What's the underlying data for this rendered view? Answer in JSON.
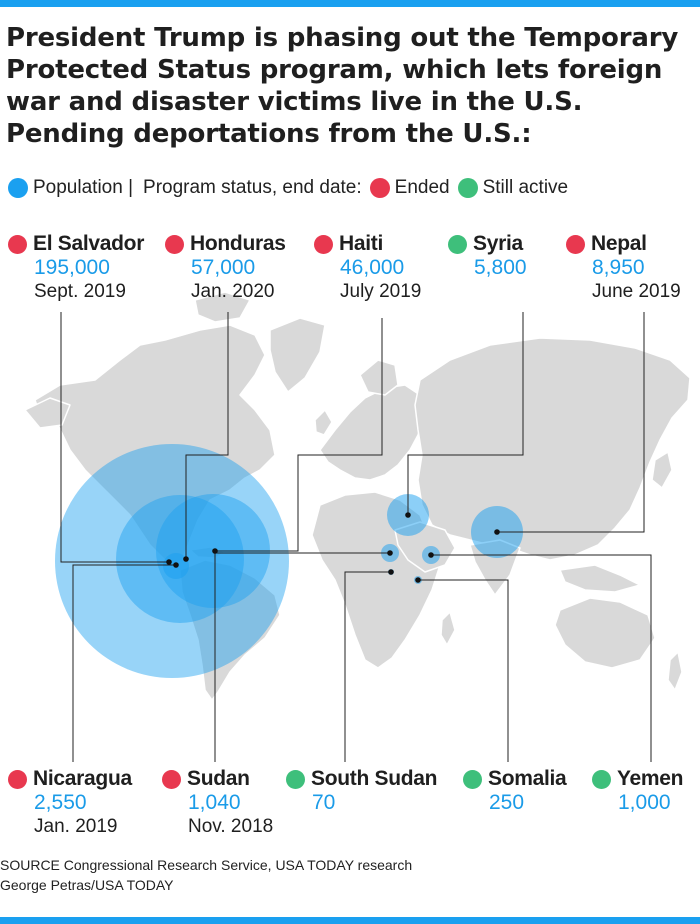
{
  "title": "President Trump is phasing out the Temporary Protected Status program, which lets foreign war and disaster victims live in the U.S. Pending deportations from the U.S.:",
  "legend": {
    "population": "Population |",
    "status_label": "Program status, end date:",
    "ended": "Ended",
    "active": "Still active"
  },
  "colors": {
    "accent": "#1aa0f0",
    "ended": "#e8384f",
    "active": "#3ebf7b",
    "land": "#d9d9d9"
  },
  "countries": [
    {
      "name": "El Salvador",
      "population": "195,000",
      "end_date": "Sept. 2019",
      "status": "ended"
    },
    {
      "name": "Honduras",
      "population": "57,000",
      "end_date": "Jan. 2020",
      "status": "ended"
    },
    {
      "name": "Haiti",
      "population": "46,000",
      "end_date": "July 2019",
      "status": "ended"
    },
    {
      "name": "Syria",
      "population": "5,800",
      "end_date": "",
      "status": "active"
    },
    {
      "name": "Nepal",
      "population": "8,950",
      "end_date": "June 2019",
      "status": "ended"
    },
    {
      "name": "Nicaragua",
      "population": "2,550",
      "end_date": "Jan. 2019",
      "status": "ended"
    },
    {
      "name": "Sudan",
      "population": "1,040",
      "end_date": "Nov. 2018",
      "status": "ended"
    },
    {
      "name": "South Sudan",
      "population": "70",
      "end_date": "",
      "status": "active"
    },
    {
      "name": "Somalia",
      "population": "250",
      "end_date": "",
      "status": "active"
    },
    {
      "name": "Yemen",
      "population": "1,000",
      "end_date": "",
      "status": "active"
    }
  ],
  "source": "SOURCE Congressional Research Service, USA TODAY research",
  "credit": "George Petras/USA TODAY"
}
